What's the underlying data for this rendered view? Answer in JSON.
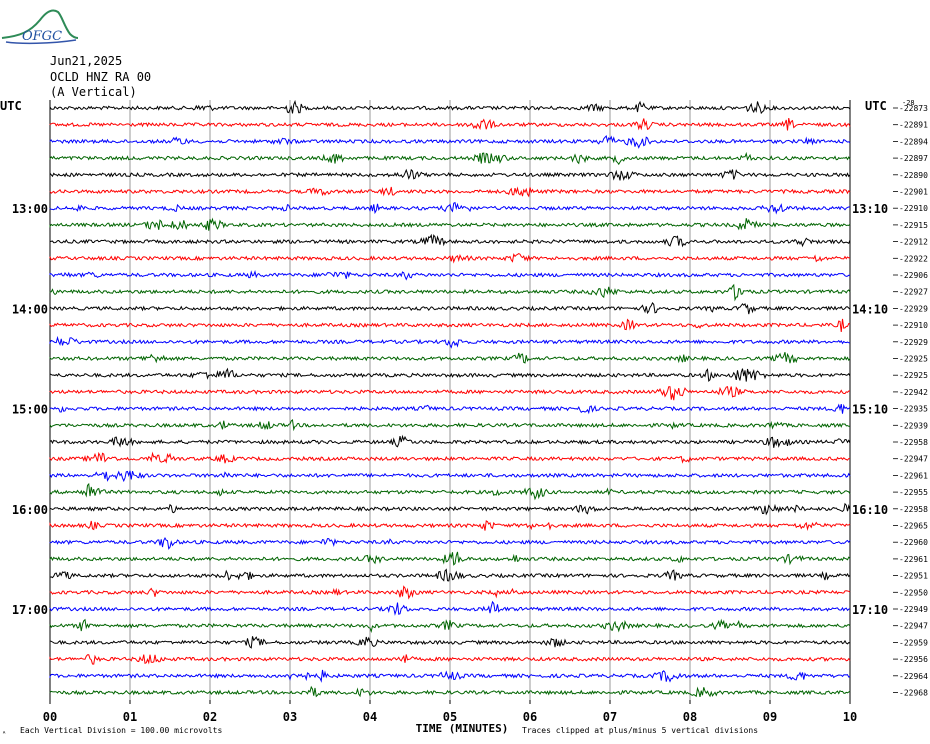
{
  "logo_text": "OFGC",
  "header": {
    "date": "Jun21,2025",
    "station": "OCLD HNZ RA 00",
    "component": "(A Vertical)"
  },
  "utc_left": "UTC",
  "utc_right": "UTC",
  "corner_label": "-28",
  "colors": [
    "#000000",
    "#ff0000",
    "#0000ff",
    "#006400"
  ],
  "left_hour_labels": [
    {
      "row": 6,
      "text": "13:00"
    },
    {
      "row": 12,
      "text": "14:00"
    },
    {
      "row": 18,
      "text": "15:00"
    },
    {
      "row": 24,
      "text": "16:00"
    },
    {
      "row": 30,
      "text": "17:00"
    }
  ],
  "right_hour_labels": [
    {
      "row": 6,
      "text": "13:10"
    },
    {
      "row": 12,
      "text": "14:10"
    },
    {
      "row": 18,
      "text": "15:10"
    },
    {
      "row": 24,
      "text": "16:10"
    },
    {
      "row": 30,
      "text": "17:10"
    }
  ],
  "footer": {
    "left_mark": "ᴬ",
    "scale_note": "Each Vertical Division =  100.00 microvolts",
    "xlabel": "TIME (MINUTES)",
    "clip_note": "Traces clipped at plus/minus 5 vertical divisions"
  },
  "chart_data": {
    "type": "line",
    "title": "",
    "xlabel": "TIME (MINUTES)",
    "ylabel": "",
    "xlim": [
      0,
      10
    ],
    "x_ticks": [
      "00",
      "01",
      "02",
      "03",
      "04",
      "05",
      "06",
      "07",
      "08",
      "09",
      "10"
    ],
    "grid": true,
    "trace_count": 36,
    "offsets": [
      "-22873",
      "-22891",
      "-22894",
      "-22897",
      "-22890",
      "-22901",
      "-22910",
      "-22915",
      "-22912",
      "-22922",
      "-22906",
      "-22927",
      "-22929",
      "-22910",
      "-22929",
      "-22925",
      "-22925",
      "-22942",
      "-22935",
      "-22939",
      "-22958",
      "-22947",
      "-22961",
      "-22955",
      "-22958",
      "-22965",
      "-22960",
      "-22961",
      "-22951",
      "-22950",
      "-22949",
      "-22947",
      "-22959",
      "-22956",
      "-22964",
      "-22968"
    ]
  }
}
